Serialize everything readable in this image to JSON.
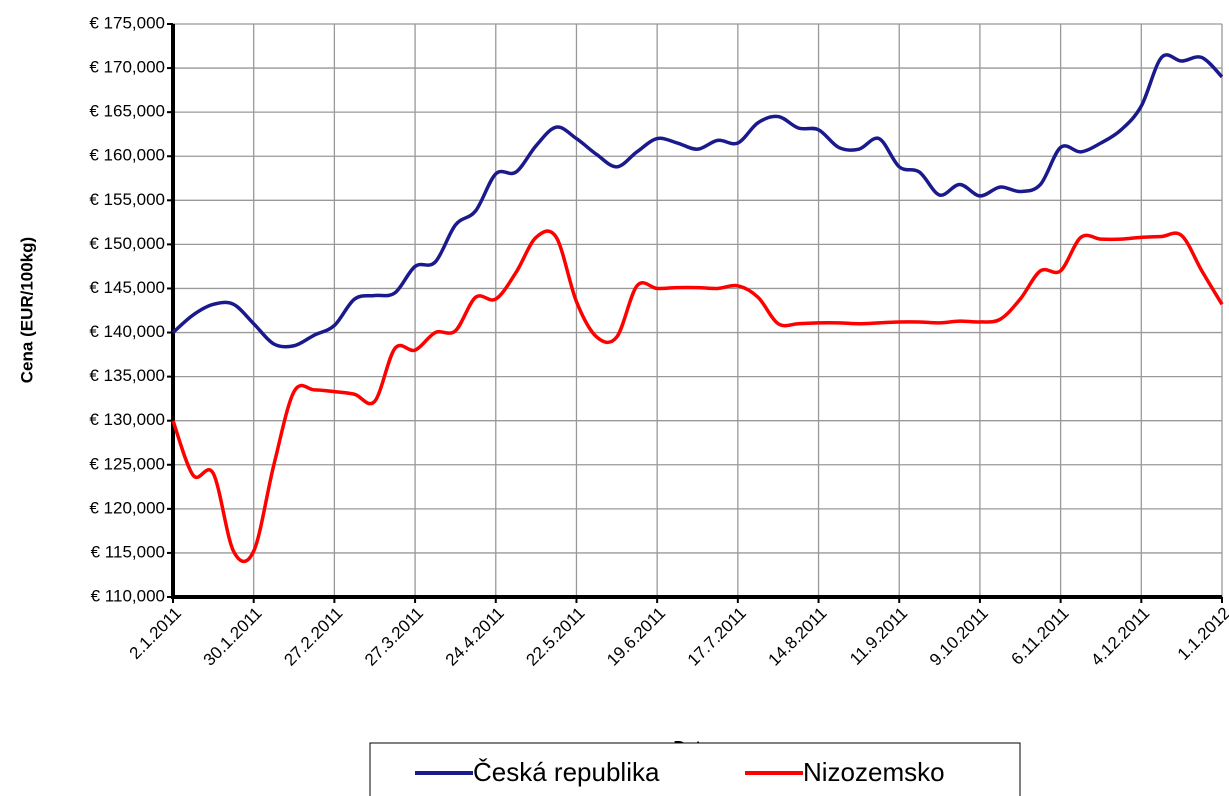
{
  "chart_data": {
    "type": "line",
    "xlabel": "Datum",
    "ylabel": "Cena (EUR/100kg)",
    "categories": [
      "2.1.2011",
      null,
      null,
      null,
      "30.1.2011",
      null,
      null,
      null,
      "27.2.2011",
      null,
      null,
      null,
      "27.3.2011",
      null,
      null,
      null,
      "24.4.2011",
      null,
      null,
      null,
      "22.5.2011",
      null,
      null,
      null,
      "19.6.2011",
      null,
      null,
      null,
      "17.7.2011",
      null,
      null,
      null,
      "14.8.2011",
      null,
      null,
      null,
      "11.9.2011",
      null,
      null,
      null,
      "9.10.2011",
      null,
      null,
      null,
      "6.11.2011",
      null,
      null,
      null,
      "4.12.2011",
      null,
      null,
      null,
      "1.1.2012"
    ],
    "series": [
      {
        "name": "Česká republika",
        "color": "#1a1a8c",
        "values": [
          140000,
          142000,
          143200,
          143200,
          141000,
          138700,
          138500,
          139700,
          140800,
          143800,
          144200,
          144500,
          147500,
          148000,
          152200,
          153800,
          158000,
          158200,
          161200,
          163300,
          162000,
          160200,
          158800,
          160500,
          162000,
          161500,
          160800,
          161800,
          161500,
          163800,
          164500,
          163200,
          163000,
          161000,
          160800,
          162000,
          158800,
          158200,
          155600,
          156800,
          155500,
          156500,
          156000,
          156800,
          161000,
          160500,
          161500,
          163000,
          165700,
          171200,
          170800,
          171200,
          169000
        ]
      },
      {
        "name": "Nizozemsko",
        "color": "#ff0000",
        "values": [
          130000,
          123800,
          124000,
          115200,
          115200,
          125000,
          133300,
          133500,
          133300,
          133000,
          132200,
          138200,
          138000,
          140000,
          140200,
          144000,
          143800,
          146800,
          150800,
          150800,
          143500,
          139500,
          139500,
          145300,
          145000,
          145100,
          145100,
          145000,
          145300,
          144000,
          141000,
          141000,
          141100,
          141100,
          141000,
          141100,
          141200,
          141200,
          141100,
          141300,
          141200,
          141500,
          143800,
          147000,
          147000,
          150800,
          150600,
          150600,
          150800,
          150900,
          151000,
          147000,
          143200
        ]
      }
    ],
    "ylim": [
      110000,
      175000
    ],
    "yticks": [
      {
        "value": 110000,
        "label": "€ 110,000"
      },
      {
        "value": 115000,
        "label": "€ 115,000"
      },
      {
        "value": 120000,
        "label": "€ 120,000"
      },
      {
        "value": 125000,
        "label": "€ 125,000"
      },
      {
        "value": 130000,
        "label": "€ 130,000"
      },
      {
        "value": 135000,
        "label": "€ 135,000"
      },
      {
        "value": 140000,
        "label": "€ 140,000"
      },
      {
        "value": 145000,
        "label": "€ 145,000"
      },
      {
        "value": 150000,
        "label": "€ 150,000"
      },
      {
        "value": 155000,
        "label": "€ 155,000"
      },
      {
        "value": 160000,
        "label": "€ 160,000"
      },
      {
        "value": 165000,
        "label": "€ 165,000"
      },
      {
        "value": 170000,
        "label": "€ 170,000"
      },
      {
        "value": 175000,
        "label": "€ 175,000"
      }
    ],
    "grid": true,
    "legend": "bottom"
  }
}
